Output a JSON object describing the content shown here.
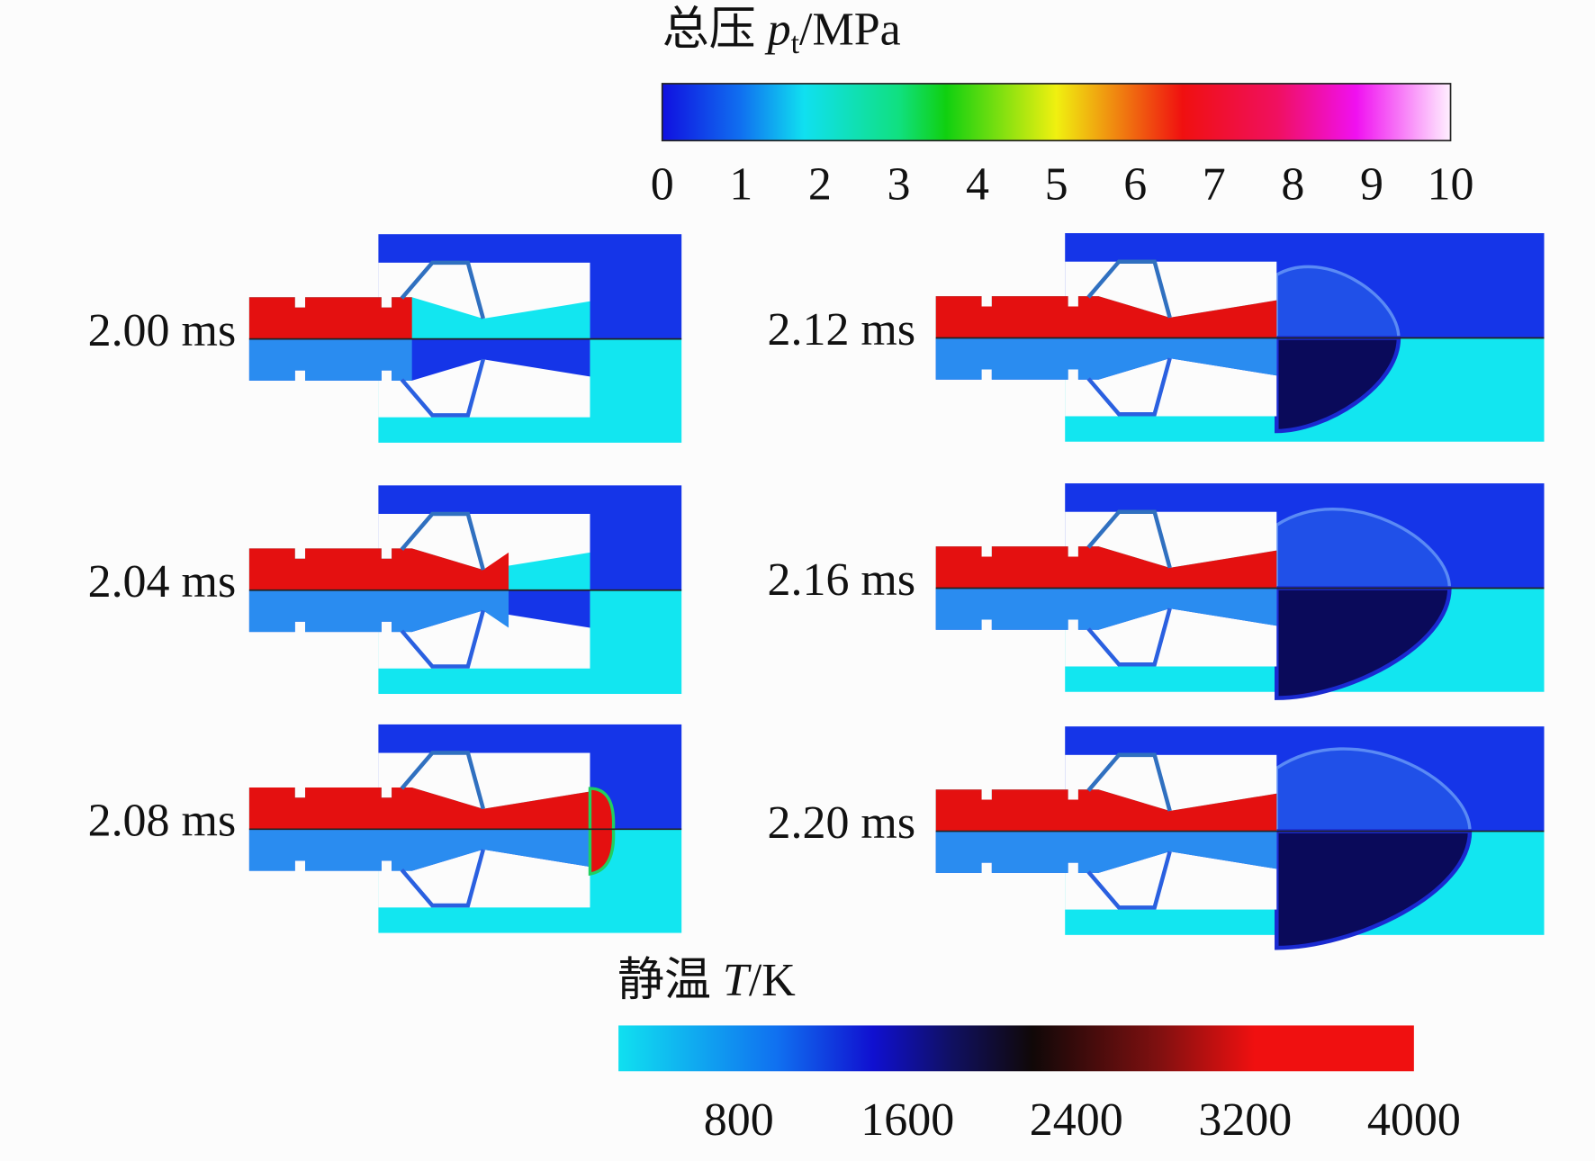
{
  "colorbars": [
    {
      "label_cn": "总压",
      "symbol": "p",
      "subscript": "t",
      "unit": "/MPa",
      "range": [
        0,
        10
      ],
      "ticks": [
        0,
        1,
        2,
        3,
        4,
        5,
        6,
        7,
        8,
        9,
        10
      ]
    },
    {
      "label_cn": "静温",
      "symbol": "T",
      "unit": "/K",
      "range": [
        230,
        4000
      ],
      "ticks": [
        800,
        1600,
        2400,
        3200,
        4000
      ]
    }
  ],
  "panels": [
    {
      "time": "2.00 ms"
    },
    {
      "time": "2.04 ms"
    },
    {
      "time": "2.08 ms"
    },
    {
      "time": "2.12 ms"
    },
    {
      "time": "2.16 ms"
    },
    {
      "time": "2.20 ms"
    }
  ]
}
